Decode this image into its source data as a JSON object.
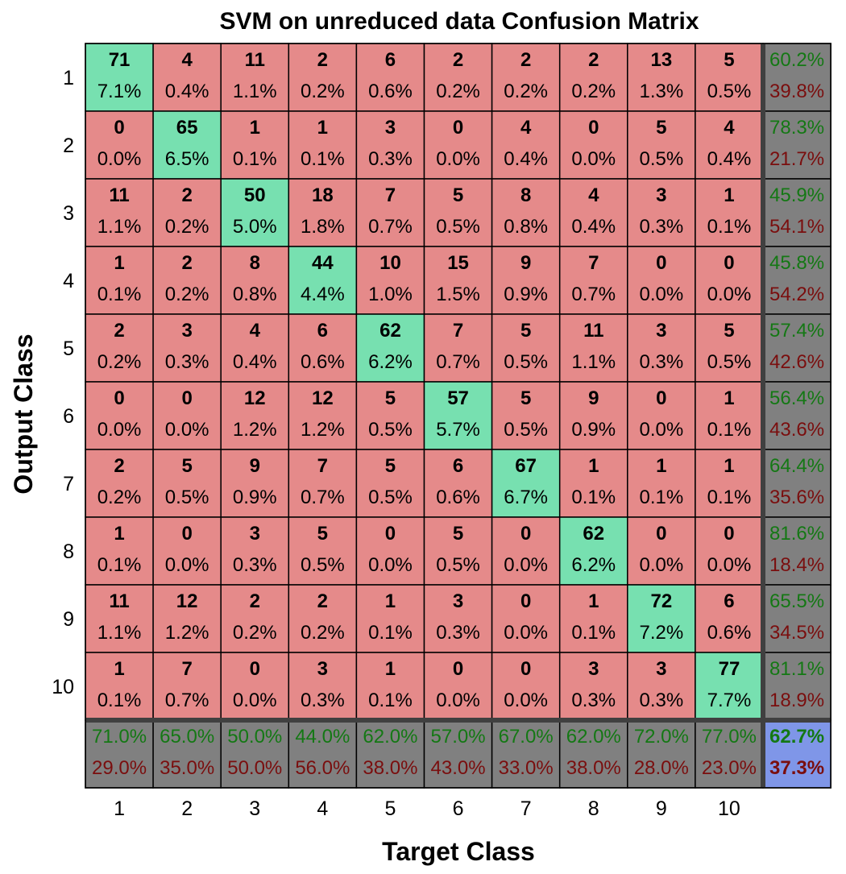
{
  "chart_data": {
    "type": "heatmap",
    "title": "SVM on unreduced data Confusion Matrix",
    "xlabel": "Target Class",
    "ylabel": "Output Class",
    "classes": [
      "1",
      "2",
      "3",
      "4",
      "5",
      "6",
      "7",
      "8",
      "9",
      "10"
    ],
    "matrix": [
      [
        71,
        4,
        11,
        2,
        6,
        2,
        2,
        2,
        13,
        5
      ],
      [
        0,
        65,
        1,
        1,
        3,
        0,
        4,
        0,
        5,
        4
      ],
      [
        11,
        2,
        50,
        18,
        7,
        5,
        8,
        4,
        3,
        1
      ],
      [
        1,
        2,
        8,
        44,
        10,
        15,
        9,
        7,
        0,
        0
      ],
      [
        2,
        3,
        4,
        6,
        62,
        7,
        5,
        11,
        3,
        5
      ],
      [
        0,
        0,
        12,
        12,
        5,
        57,
        5,
        9,
        0,
        1
      ],
      [
        2,
        5,
        9,
        7,
        5,
        6,
        67,
        1,
        1,
        1
      ],
      [
        1,
        0,
        3,
        5,
        0,
        5,
        0,
        62,
        0,
        0
      ],
      [
        11,
        12,
        2,
        2,
        1,
        3,
        0,
        1,
        72,
        6
      ],
      [
        1,
        7,
        0,
        3,
        1,
        0,
        0,
        3,
        3,
        77
      ]
    ],
    "percentages": [
      [
        "7.1%",
        "0.4%",
        "1.1%",
        "0.2%",
        "0.6%",
        "0.2%",
        "0.2%",
        "0.2%",
        "1.3%",
        "0.5%"
      ],
      [
        "0.0%",
        "6.5%",
        "0.1%",
        "0.1%",
        "0.3%",
        "0.0%",
        "0.4%",
        "0.0%",
        "0.5%",
        "0.4%"
      ],
      [
        "1.1%",
        "0.2%",
        "5.0%",
        "1.8%",
        "0.7%",
        "0.5%",
        "0.8%",
        "0.4%",
        "0.3%",
        "0.1%"
      ],
      [
        "0.1%",
        "0.2%",
        "0.8%",
        "4.4%",
        "1.0%",
        "1.5%",
        "0.9%",
        "0.7%",
        "0.0%",
        "0.0%"
      ],
      [
        "0.2%",
        "0.3%",
        "0.4%",
        "0.6%",
        "6.2%",
        "0.7%",
        "0.5%",
        "1.1%",
        "0.3%",
        "0.5%"
      ],
      [
        "0.0%",
        "0.0%",
        "1.2%",
        "1.2%",
        "0.5%",
        "5.7%",
        "0.5%",
        "0.9%",
        "0.0%",
        "0.1%"
      ],
      [
        "0.2%",
        "0.5%",
        "0.9%",
        "0.7%",
        "0.5%",
        "0.6%",
        "6.7%",
        "0.1%",
        "0.1%",
        "0.1%"
      ],
      [
        "0.1%",
        "0.0%",
        "0.3%",
        "0.5%",
        "0.0%",
        "0.5%",
        "0.0%",
        "6.2%",
        "0.0%",
        "0.0%"
      ],
      [
        "1.1%",
        "1.2%",
        "0.2%",
        "0.2%",
        "0.1%",
        "0.3%",
        "0.0%",
        "0.1%",
        "7.2%",
        "0.6%"
      ],
      [
        "0.1%",
        "0.7%",
        "0.0%",
        "0.3%",
        "0.1%",
        "0.0%",
        "0.0%",
        "0.3%",
        "0.3%",
        "7.7%"
      ]
    ],
    "row_correct": [
      "60.2%",
      "78.3%",
      "45.9%",
      "45.8%",
      "57.4%",
      "56.4%",
      "64.4%",
      "81.6%",
      "65.5%",
      "81.1%"
    ],
    "row_wrong": [
      "39.8%",
      "21.7%",
      "54.1%",
      "54.2%",
      "42.6%",
      "43.6%",
      "35.6%",
      "18.4%",
      "34.5%",
      "18.9%"
    ],
    "col_correct": [
      "71.0%",
      "65.0%",
      "50.0%",
      "44.0%",
      "62.0%",
      "57.0%",
      "67.0%",
      "62.0%",
      "72.0%",
      "77.0%"
    ],
    "col_wrong": [
      "29.0%",
      "35.0%",
      "50.0%",
      "56.0%",
      "38.0%",
      "43.0%",
      "33.0%",
      "38.0%",
      "28.0%",
      "23.0%"
    ],
    "total_correct": "62.7%",
    "total_wrong": "37.3%",
    "colors": {
      "diagonal": "#77E0B0",
      "off_diagonal": "#E58A8A",
      "summary": "#808080",
      "total": "#7F96E8",
      "correct_text": "#147814",
      "wrong_text": "#7A0E0E",
      "total_correct_text": "#147814",
      "total_wrong_text": "#7A0E0E"
    }
  }
}
